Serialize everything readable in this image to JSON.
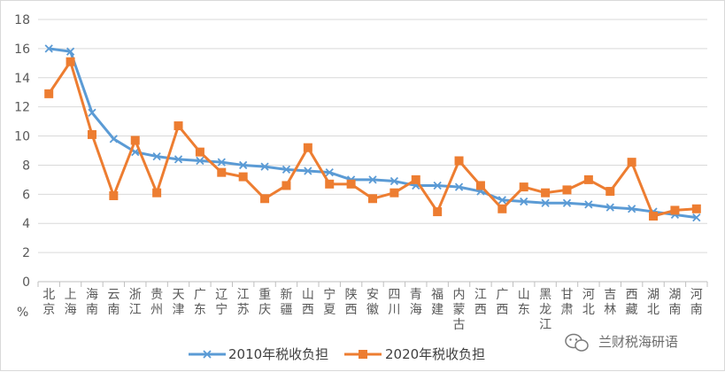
{
  "chart_data": {
    "type": "line",
    "title": "",
    "xlabel": "",
    "ylabel": "%",
    "ylim": [
      0,
      18
    ],
    "yticks": [
      "0",
      "2",
      "4",
      "6",
      "8",
      "10",
      "12",
      "14",
      "16",
      "18"
    ],
    "grid": true,
    "legend_position": "bottom",
    "categories": [
      "北京",
      "上海",
      "海南",
      "云南",
      "浙江",
      "贵州",
      "天津",
      "广东",
      "辽宁",
      "江苏",
      "重庆",
      "新疆",
      "山西",
      "宁夏",
      "陕西",
      "安徽",
      "四川",
      "青海",
      "福建",
      "内蒙古",
      "江西",
      "广西",
      "山东",
      "黑龙江",
      "甘肃",
      "河北",
      "吉林",
      "西藏",
      "湖北",
      "湖南",
      "河南"
    ],
    "series": [
      {
        "name": "2010年税收负担",
        "color": "#5B9BD5",
        "marker": "x",
        "values": [
          16.0,
          15.8,
          11.6,
          9.8,
          8.9,
          8.6,
          8.4,
          8.3,
          8.2,
          8.0,
          7.9,
          7.7,
          7.6,
          7.5,
          7.0,
          7.0,
          6.9,
          6.6,
          6.6,
          6.5,
          6.2,
          5.6,
          5.5,
          5.4,
          5.4,
          5.3,
          5.1,
          5.0,
          4.8,
          4.6,
          4.4
        ]
      },
      {
        "name": "2020年税收负担",
        "color": "#ED7D31",
        "marker": "square",
        "values": [
          12.9,
          15.1,
          10.1,
          5.9,
          9.7,
          6.1,
          10.7,
          8.9,
          7.5,
          7.2,
          5.7,
          6.6,
          9.2,
          6.7,
          6.7,
          5.7,
          6.1,
          7.0,
          4.8,
          8.3,
          6.6,
          5.0,
          6.5,
          6.1,
          6.3,
          7.0,
          6.2,
          8.2,
          4.5,
          4.9,
          5.0
        ]
      }
    ]
  },
  "watermark": "兰财税海研语"
}
